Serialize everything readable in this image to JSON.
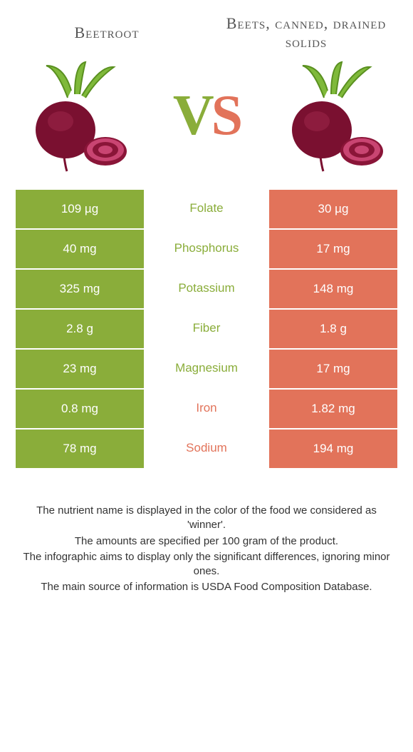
{
  "colors": {
    "left": "#8aad3a",
    "right": "#e2735a",
    "background": "#ffffff",
    "text": "#333333",
    "title": "#555555"
  },
  "typography": {
    "title_fontsize": 22,
    "vs_fontsize": 80,
    "cell_fontsize": 17,
    "footer_fontsize": 15
  },
  "food_left": {
    "title": "Beetroot"
  },
  "food_right": {
    "title": "Beets, canned, drained solids"
  },
  "vs": {
    "v": "V",
    "s": "S"
  },
  "nutrients": [
    {
      "name": "Folate",
      "left": "109 µg",
      "right": "30 µg",
      "winner": "left"
    },
    {
      "name": "Phosphorus",
      "left": "40 mg",
      "right": "17 mg",
      "winner": "left"
    },
    {
      "name": "Potassium",
      "left": "325 mg",
      "right": "148 mg",
      "winner": "left"
    },
    {
      "name": "Fiber",
      "left": "2.8 g",
      "right": "1.8 g",
      "winner": "left"
    },
    {
      "name": "Magnesium",
      "left": "23 mg",
      "right": "17 mg",
      "winner": "left"
    },
    {
      "name": "Iron",
      "left": "0.8 mg",
      "right": "1.82 mg",
      "winner": "right"
    },
    {
      "name": "Sodium",
      "left": "78 mg",
      "right": "194 mg",
      "winner": "right"
    }
  ],
  "footer": {
    "line1": "The nutrient name is displayed in the color of the food we considered as 'winner'.",
    "line2": "The amounts are specified per 100 gram of the product.",
    "line3": "The infographic aims to display only the significant differences, ignoring minor ones.",
    "line4": "The main source of information is USDA Food Composition Database."
  }
}
